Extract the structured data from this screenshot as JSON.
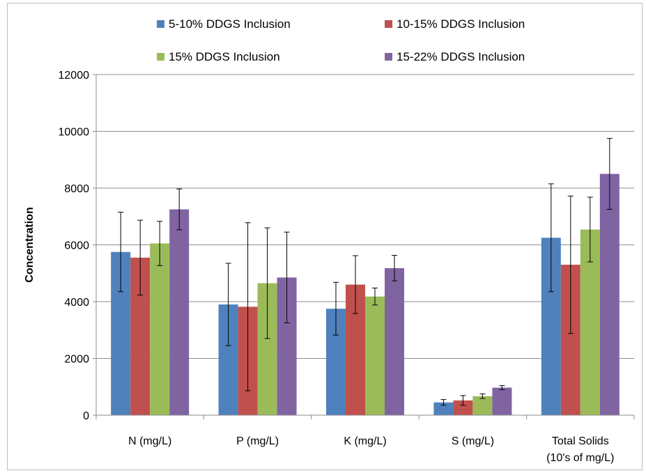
{
  "chart_data": {
    "type": "bar",
    "title": "",
    "xlabel": "",
    "ylabel": "Concentration",
    "ylim": [
      0,
      12000
    ],
    "yticks": [
      0,
      2000,
      4000,
      6000,
      8000,
      10000,
      12000
    ],
    "grid": true,
    "legend_position": "top",
    "categories": [
      [
        "N (mg/L)"
      ],
      [
        "P (mg/L)"
      ],
      [
        "K (mg/L)"
      ],
      [
        "S (mg/L)"
      ],
      [
        "Total Solids",
        "(10's of mg/L)"
      ]
    ],
    "series": [
      {
        "name": "5-10% DDGS Inclusion",
        "color": "#4f81bd",
        "values": [
          5750,
          3900,
          3750,
          450,
          6250
        ],
        "errors": [
          1400,
          1450,
          930,
          100,
          1900
        ]
      },
      {
        "name": "10-15% DDGS Inclusion",
        "color": "#c0504d",
        "values": [
          5550,
          3820,
          4600,
          520,
          5300
        ],
        "errors": [
          1320,
          2960,
          1020,
          170,
          2420
        ]
      },
      {
        "name": "15% DDGS Inclusion",
        "color": "#9bbb59",
        "values": [
          6050,
          4650,
          4180,
          670,
          6540
        ],
        "errors": [
          780,
          1950,
          300,
          80,
          1140
        ]
      },
      {
        "name": "15-22% DDGS Inclusion",
        "color": "#8064a2",
        "values": [
          7250,
          4850,
          5180,
          970,
          8500
        ],
        "errors": [
          720,
          1600,
          450,
          70,
          1250
        ]
      }
    ]
  }
}
